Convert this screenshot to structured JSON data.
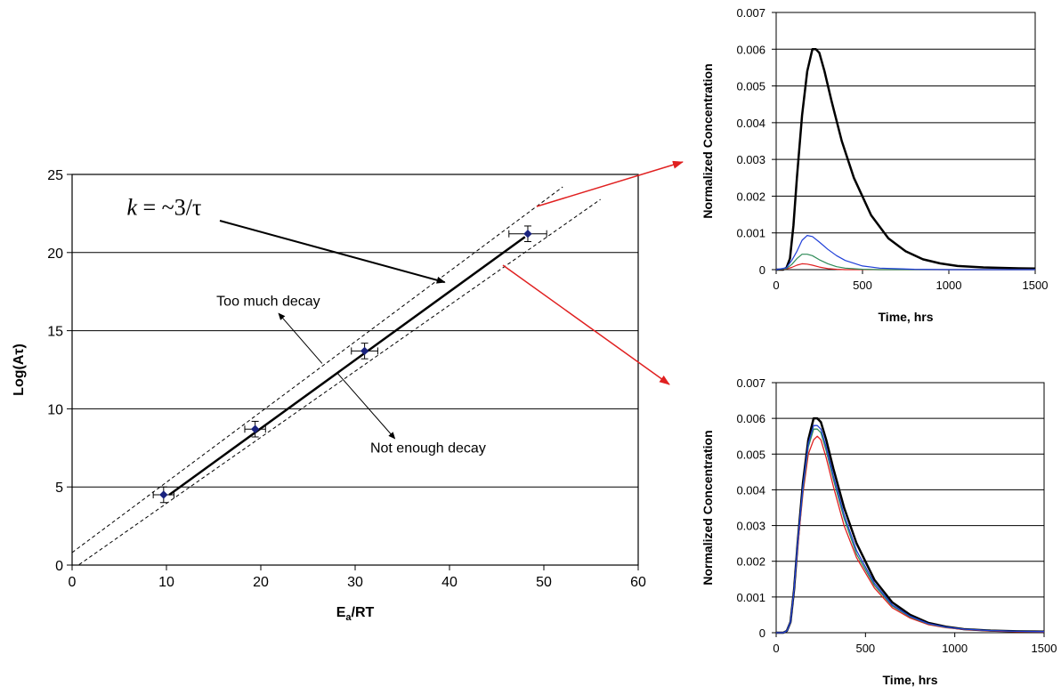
{
  "chart_data": [
    {
      "id": "main",
      "type": "scatter",
      "xlabel": "E",
      "xlabel_sub": "a",
      "xlabel_suffix": "/RT",
      "ylabel": "Log(Aτ)",
      "xlim": [
        0,
        60
      ],
      "ylim": [
        0,
        25
      ],
      "xticks": [
        0,
        10,
        20,
        30,
        40,
        50,
        60
      ],
      "yticks": [
        0,
        5,
        10,
        15,
        20,
        25
      ],
      "grid": "horizontal",
      "points": [
        {
          "x": 9.7,
          "y": 4.5,
          "xerr": 1.1,
          "yerr": 0.5
        },
        {
          "x": 19.4,
          "y": 8.7,
          "xerr": 1.1,
          "yerr": 0.5
        },
        {
          "x": 31.0,
          "y": 13.7,
          "xerr": 1.4,
          "yerr": 0.5
        },
        {
          "x": 48.3,
          "y": 21.2,
          "xerr": 2.0,
          "yerr": 0.5
        }
      ],
      "fit_line": {
        "x": [
          10.3,
          48.0
        ],
        "y": [
          4.5,
          21.0
        ]
      },
      "dashed_lines": [
        {
          "x": [
            0.0,
            52.0
          ],
          "y": [
            0.8,
            24.2
          ]
        },
        {
          "x": [
            0.2,
            56.0
          ],
          "y": [
            -0.2,
            23.4
          ]
        }
      ],
      "annotations": [
        {
          "text_italic": "k",
          "text": " = ~3/τ",
          "x": 5.8,
          "y": 22.4,
          "arrow_to": [
            39.5,
            18.1
          ]
        },
        {
          "text": "Too much decay",
          "x": 15.3,
          "y": 16.6,
          "arrow_from": [
            26.5,
            12.9
          ],
          "arrow_to": [
            21.9,
            16.1
          ]
        },
        {
          "text": "Not enough decay",
          "x": 31.6,
          "y": 7.2,
          "arrow_from": [
            28.1,
            12.3
          ],
          "arrow_to": [
            34.2,
            8.1
          ]
        }
      ]
    },
    {
      "id": "top-right",
      "type": "line",
      "xlabel": "Time, hrs",
      "ylabel": "Normalized Concentration",
      "xlim": [
        0,
        1500
      ],
      "ylim": [
        0,
        0.007
      ],
      "xticks": [
        0,
        500,
        1000,
        1500
      ],
      "yticks": [
        0,
        0.001,
        0.002,
        0.003,
        0.004,
        0.005,
        0.006,
        0.007
      ],
      "grid": "horizontal",
      "series": [
        {
          "color": "#000000",
          "width": 2.5,
          "x": [
            0,
            40,
            60,
            80,
            100,
            120,
            150,
            180,
            210,
            230,
            250,
            280,
            320,
            380,
            450,
            550,
            650,
            750,
            850,
            950,
            1050,
            1200,
            1350,
            1500
          ],
          "y": [
            0,
            0,
            5e-05,
            0.0003,
            0.0012,
            0.0025,
            0.0042,
            0.0054,
            0.006,
            0.006,
            0.0059,
            0.0054,
            0.0046,
            0.0035,
            0.0025,
            0.00148,
            0.00085,
            0.0005,
            0.00028,
            0.00017,
            0.0001,
            6e-05,
            4e-05,
            3e-05
          ]
        },
        {
          "color": "#1f3fd8",
          "width": 1.2,
          "x": [
            0,
            60,
            90,
            120,
            150,
            180,
            210,
            250,
            300,
            350,
            400,
            500,
            600,
            800,
            1000,
            1500
          ],
          "y": [
            0,
            5e-05,
            0.00025,
            0.0005,
            0.0008,
            0.00093,
            0.0009,
            0.00075,
            0.00055,
            0.00038,
            0.00025,
            0.0001,
            4e-05,
            1e-05,
            0,
            0
          ]
        },
        {
          "color": "#2e8b57",
          "width": 1.2,
          "x": [
            0,
            60,
            90,
            120,
            150,
            180,
            210,
            250,
            300,
            350,
            400,
            500,
            600,
            800,
            1500
          ],
          "y": [
            0,
            3e-05,
            0.00014,
            0.0003,
            0.00042,
            0.00042,
            0.00038,
            0.00027,
            0.00016,
            8e-05,
            4e-05,
            1e-05,
            0,
            0,
            0
          ]
        },
        {
          "color": "#e02020",
          "width": 1.2,
          "x": [
            0,
            60,
            90,
            120,
            150,
            180,
            210,
            250,
            300,
            350,
            400,
            500,
            1500
          ],
          "y": [
            0,
            2e-05,
            6e-05,
            0.00012,
            0.00016,
            0.00015,
            0.00012,
            7e-05,
            3e-05,
            1e-05,
            0,
            0,
            0
          ]
        }
      ]
    },
    {
      "id": "bottom-right",
      "type": "line",
      "xlabel": "Time, hrs",
      "ylabel": "Normalized Concentration",
      "xlim": [
        0,
        1500
      ],
      "ylim": [
        0,
        0.007
      ],
      "xticks": [
        0,
        500,
        1000,
        1500
      ],
      "yticks": [
        0,
        0.001,
        0.002,
        0.003,
        0.004,
        0.005,
        0.006,
        0.007
      ],
      "grid": "horizontal",
      "series": [
        {
          "color": "#000000",
          "width": 2.5,
          "x": [
            0,
            40,
            60,
            80,
            100,
            120,
            150,
            180,
            210,
            230,
            250,
            280,
            320,
            380,
            450,
            550,
            650,
            750,
            850,
            950,
            1050,
            1200,
            1350,
            1500
          ],
          "y": [
            0,
            0,
            5e-05,
            0.0003,
            0.0012,
            0.0025,
            0.0042,
            0.0054,
            0.006,
            0.006,
            0.0059,
            0.0054,
            0.0046,
            0.0035,
            0.0025,
            0.00148,
            0.00085,
            0.0005,
            0.00028,
            0.00017,
            0.0001,
            6e-05,
            4e-05,
            3e-05
          ]
        },
        {
          "color": "#1f3fd8",
          "width": 1.3,
          "x": [
            0,
            40,
            60,
            80,
            100,
            120,
            150,
            180,
            210,
            230,
            250,
            280,
            320,
            380,
            450,
            550,
            650,
            750,
            850,
            950,
            1050,
            1200,
            1350,
            1500
          ],
          "y": [
            0,
            0,
            5e-05,
            0.0003,
            0.0012,
            0.0025,
            0.0041,
            0.0053,
            0.0058,
            0.0058,
            0.0057,
            0.0052,
            0.0044,
            0.0033,
            0.0023,
            0.00138,
            0.00078,
            0.00046,
            0.00026,
            0.00016,
            0.0001,
            6e-05,
            4e-05,
            3e-05
          ]
        },
        {
          "color": "#2e8b57",
          "width": 1.3,
          "x": [
            0,
            40,
            60,
            80,
            100,
            120,
            150,
            180,
            210,
            230,
            250,
            280,
            320,
            380,
            450,
            550,
            650,
            750,
            850,
            950,
            1050,
            1200,
            1350,
            1500
          ],
          "y": [
            0,
            0,
            5e-05,
            0.0003,
            0.0012,
            0.0025,
            0.004,
            0.0052,
            0.0057,
            0.0057,
            0.0056,
            0.0051,
            0.0043,
            0.0032,
            0.0022,
            0.00132,
            0.00075,
            0.00044,
            0.00025,
            0.00015,
            0.0001,
            6e-05,
            4e-05,
            3e-05
          ]
        },
        {
          "color": "#e02020",
          "width": 1.3,
          "x": [
            0,
            40,
            60,
            80,
            100,
            120,
            150,
            180,
            210,
            230,
            250,
            280,
            320,
            380,
            450,
            550,
            650,
            750,
            850,
            950,
            1050,
            1200,
            1350,
            1500
          ],
          "y": [
            0,
            0,
            5e-05,
            0.0003,
            0.0012,
            0.0024,
            0.0039,
            0.005,
            0.0054,
            0.0055,
            0.0054,
            0.0049,
            0.0041,
            0.003,
            0.0021,
            0.00125,
            0.0007,
            0.00041,
            0.00023,
            0.00014,
            9e-05,
            5e-05,
            3e-05,
            2e-05
          ]
        }
      ]
    }
  ],
  "connector_arrows": {
    "color": "#e02020"
  }
}
